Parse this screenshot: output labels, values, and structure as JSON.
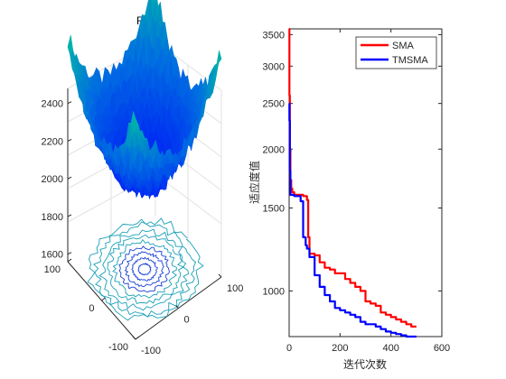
{
  "colors": {
    "sma": "#ff0000",
    "tmsma": "#0000ff",
    "surface_low": "#0030ff",
    "surface_high": "#00c8a0",
    "contour": "#2060c0"
  },
  "chart_data": [
    {
      "type": "surface",
      "title": "F7",
      "x_ticks": [
        "-100",
        "0",
        "100"
      ],
      "y_ticks": [
        "100",
        "0",
        "-100"
      ],
      "z_ticks": [
        "1600",
        "1800",
        "2000",
        "2200",
        "2400"
      ],
      "x_range": [
        -100,
        100
      ],
      "y_range": [
        -100,
        100
      ],
      "z_range": [
        1560,
        2480
      ],
      "grid": true,
      "contour_projection": true
    },
    {
      "type": "line",
      "title": "",
      "xlabel": "迭代次数",
      "ylabel": "适应度值",
      "xlim": [
        0,
        500
      ],
      "ylim": [
        800,
        3600
      ],
      "y_scale": "log",
      "x_ticks": [
        "0",
        "200",
        "400",
        "600"
      ],
      "y_ticks": [
        "1000",
        "1500",
        "2000",
        "2500",
        "3000",
        "3500"
      ],
      "legend_position": "top-right",
      "series": [
        {
          "name": "SMA",
          "color": "#ff0000",
          "x": [
            0,
            1,
            3,
            5,
            8,
            12,
            20,
            35,
            55,
            70,
            75,
            80,
            90,
            100,
            120,
            140,
            160,
            180,
            200,
            220,
            240,
            260,
            280,
            300,
            320,
            340,
            360,
            380,
            400,
            420,
            440,
            460,
            480,
            500
          ],
          "y": [
            3600,
            2600,
            2000,
            1720,
            1650,
            1620,
            1600,
            1600,
            1590,
            1560,
            1300,
            1200,
            1200,
            1190,
            1150,
            1120,
            1110,
            1090,
            1090,
            1060,
            1040,
            1020,
            1000,
            950,
            940,
            930,
            900,
            890,
            880,
            870,
            860,
            850,
            840,
            840
          ]
        },
        {
          "name": "TMSMA",
          "color": "#0000ff",
          "x": [
            0,
            1,
            3,
            5,
            10,
            20,
            35,
            45,
            55,
            65,
            70,
            80,
            100,
            120,
            140,
            160,
            180,
            200,
            220,
            240,
            260,
            280,
            300,
            320,
            340,
            360,
            380,
            400,
            420,
            440,
            460,
            480,
            500
          ],
          "y": [
            2500,
            2300,
            1800,
            1600,
            1600,
            1590,
            1590,
            1550,
            1300,
            1250,
            1230,
            1180,
            1080,
            1020,
            980,
            950,
            920,
            910,
            900,
            890,
            880,
            860,
            850,
            850,
            840,
            830,
            820,
            815,
            810,
            805,
            800,
            800,
            800
          ]
        }
      ]
    }
  ]
}
